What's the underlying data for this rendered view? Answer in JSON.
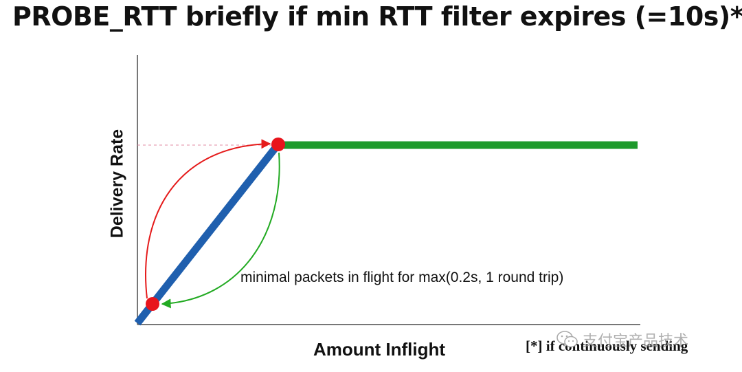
{
  "slide": {
    "title": "PROBE_RTT briefly if min RTT filter expires (=10s)*"
  },
  "axes": {
    "y_label": "Delivery Rate",
    "x_label": "Amount Inflight"
  },
  "annotation": "minimal packets in flight for max(0.2s, 1 round trip)",
  "footnote": "[*] if continuously sending",
  "watermark": {
    "text": "支付宝产品技术",
    "icon": "wechat-icon"
  },
  "colors": {
    "axis": "#777777",
    "bdp_slope": "#1f5fae",
    "plateau": "#1e9a2c",
    "drop_arrow": "#e51b1b",
    "return_arrow": "#22aa22",
    "operating_point": "#e8141c",
    "guide_line": "#e08aa0"
  }
}
